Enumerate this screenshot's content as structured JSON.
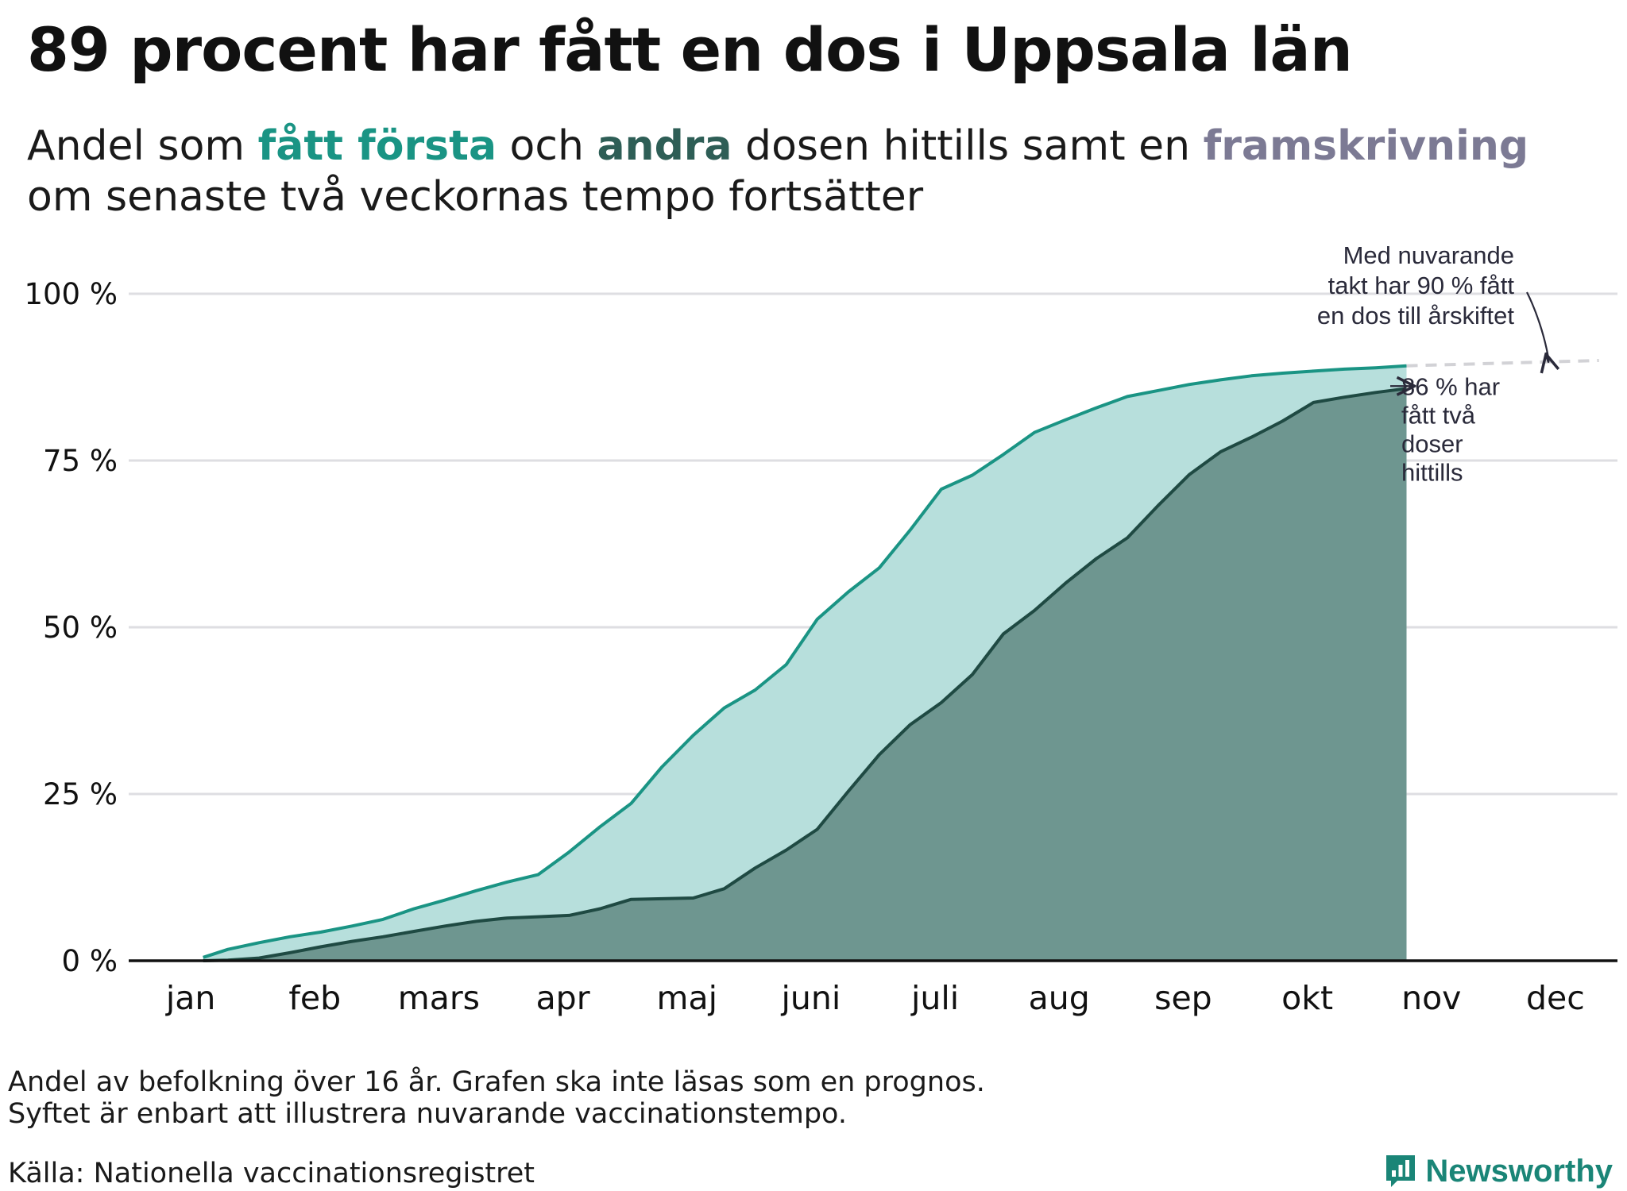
{
  "title": "89 procent har fått en dos i Uppsala län",
  "subtitle": {
    "part1": "Andel som ",
    "first_dose": "fått första",
    "part2": " och ",
    "second_dose": "andra",
    "part3": " dosen hittills samt en ",
    "projection": "framskrivning",
    "part4": " om senaste två veckornas tempo fortsätter"
  },
  "colors": {
    "first_dose_line": "#1a9484",
    "first_dose_fill": "#b7dfdc",
    "second_dose_line": "#1f4a43",
    "second_dose_fill": "#6e9690",
    "projection": "#d2d2d6",
    "grid": "#dedee2",
    "axis": "#111111"
  },
  "chart_data": {
    "type": "area",
    "x_unit": "month (2021, fractional)",
    "xlim": [
      0,
      12
    ],
    "ylim": [
      0,
      100
    ],
    "y_ticks": [
      0,
      25,
      50,
      75,
      100
    ],
    "y_tick_labels": [
      "0 %",
      "25 %",
      "50 %",
      "75 %",
      "100 %"
    ],
    "x_tick_positions": [
      0.5,
      1.5,
      2.5,
      3.5,
      4.5,
      5.5,
      6.5,
      7.5,
      8.5,
      9.5,
      10.5,
      11.5
    ],
    "x_tick_labels": [
      "jan",
      "feb",
      "mars",
      "apr",
      "maj",
      "juni",
      "juli",
      "aug",
      "sep",
      "okt",
      "nov",
      "dec"
    ],
    "grid": true,
    "series": [
      {
        "name": "fått första",
        "x": [
          0.6,
          0.8,
          1.05,
          1.3,
          1.55,
          1.8,
          2.05,
          2.3,
          2.55,
          2.8,
          3.05,
          3.3,
          3.55,
          3.8,
          4.05,
          4.3,
          4.55,
          4.8,
          5.05,
          5.3,
          5.55,
          5.8,
          6.05,
          6.3,
          6.55,
          6.8,
          7.05,
          7.3,
          7.55,
          7.8,
          8.05,
          8.3,
          8.55,
          8.8,
          9.05,
          9.3,
          9.55,
          9.8,
          10.05,
          10.3
        ],
        "values": [
          0.5,
          1.7,
          2.7,
          3.6,
          4.3,
          5.2,
          6.2,
          7.8,
          9.1,
          10.5,
          11.8,
          12.9,
          16.3,
          20.1,
          23.6,
          29.1,
          33.8,
          37.9,
          40.6,
          44.4,
          51.2,
          55.3,
          58.9,
          64.6,
          70.7,
          72.8,
          75.9,
          79.2,
          81.1,
          82.9,
          84.6,
          85.5,
          86.4,
          87.1,
          87.7,
          88.1,
          88.4,
          88.7,
          88.9,
          89.2
        ]
      },
      {
        "name": "andra",
        "x": [
          0.6,
          0.8,
          1.05,
          1.3,
          1.55,
          1.8,
          2.05,
          2.3,
          2.55,
          2.8,
          3.05,
          3.3,
          3.55,
          3.8,
          4.05,
          4.3,
          4.55,
          4.8,
          5.05,
          5.3,
          5.55,
          5.8,
          6.05,
          6.3,
          6.55,
          6.8,
          7.05,
          7.3,
          7.55,
          7.8,
          8.05,
          8.3,
          8.55,
          8.8,
          9.05,
          9.3,
          9.55,
          9.8,
          10.05,
          10.3
        ],
        "values": [
          0,
          0.1,
          0.4,
          1.2,
          2.1,
          2.9,
          3.6,
          4.4,
          5.2,
          5.9,
          6.4,
          6.6,
          6.8,
          7.8,
          9.2,
          9.3,
          9.4,
          10.8,
          13.9,
          16.6,
          19.7,
          25.4,
          30.9,
          35.4,
          38.7,
          42.9,
          49.0,
          52.5,
          56.6,
          60.3,
          63.4,
          68.3,
          72.9,
          76.3,
          78.5,
          80.9,
          83.7,
          84.5,
          85.2,
          85.8
        ]
      },
      {
        "name": "framskrivning",
        "x": [
          10.3,
          11.85
        ],
        "values": [
          89.2,
          90
        ]
      }
    ],
    "annotations": [
      {
        "lines": [
          "Med nuvarande",
          "takt har 90 % fått",
          "en dos till årskiftet"
        ]
      },
      {
        "lines": [
          "86 % har",
          "fått två",
          "doser",
          "hittills"
        ]
      }
    ]
  },
  "footnote": {
    "line1": "Andel av befolkning över 16 år. Grafen ska inte läsas som en prognos.",
    "line2": "Syftet är enbart att illustrera nuvarande vaccinationstempo."
  },
  "source": "Källa: Nationella vaccinationsregistret",
  "brand": {
    "name": "Newsworthy",
    "icon": "newsworthy-logo-icon"
  }
}
